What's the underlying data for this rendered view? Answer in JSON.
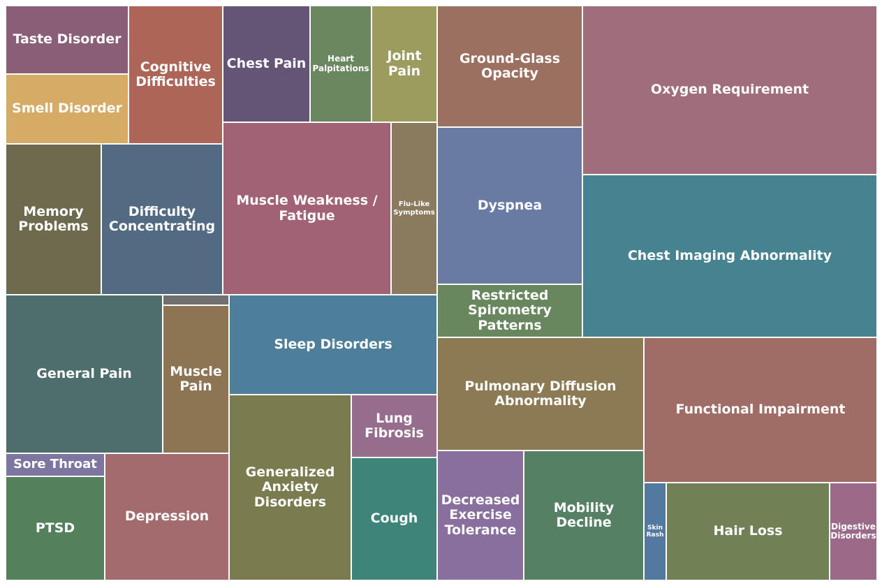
{
  "chart_data": {
    "type": "treemap",
    "tiles": [
      {
        "label": "Taste Disorder",
        "color": "#8a5e76"
      },
      {
        "label": "Smell Disorder",
        "color": "#d6ab66"
      },
      {
        "label": "Cognitive Difficulties",
        "color": "#ad6558"
      },
      {
        "label": "Chest Pain",
        "color": "#645476"
      },
      {
        "label": "Heart Palpitations",
        "color": "#6b8760"
      },
      {
        "label": "Joint Pain",
        "color": "#9c9c5e"
      },
      {
        "label": "Ground-Glass Opacity",
        "color": "#9b7060"
      },
      {
        "label": "Oxygen Requirement",
        "color": "#9f6d7c"
      },
      {
        "label": "Memory Problems",
        "color": "#6e6a4e"
      },
      {
        "label": "Difficulty Concentrating",
        "color": "#536b82"
      },
      {
        "label": "Muscle Weakness / Fatigue",
        "color": "#a06274"
      },
      {
        "label": "Flu-Like Symptoms",
        "color": "#8a7a5e"
      },
      {
        "label": "Dyspnea",
        "color": "#6a7ba3"
      },
      {
        "label": "Chest Imaging Abnormality",
        "color": "#478290"
      },
      {
        "label": "Restricted Spirometry Patterns",
        "color": "#68875f"
      },
      {
        "label": "General Pain",
        "color": "#4d6e6c"
      },
      {
        "label": "",
        "color": "#707070"
      },
      {
        "label": "Muscle Pain",
        "color": "#8d7453"
      },
      {
        "label": "Sleep Disorders",
        "color": "#4e7f9a"
      },
      {
        "label": "Pulmonary Diffusion Abnormality",
        "color": "#8b7a54"
      },
      {
        "label": "Functional Impairment",
        "color": "#a06c66"
      },
      {
        "label": "Lung Fibrosis",
        "color": "#976d8d"
      },
      {
        "label": "Generalized Anxiety Disorders",
        "color": "#7a7b4e"
      },
      {
        "label": "Sore Throat",
        "color": "#7c76a1"
      },
      {
        "label": "PTSD",
        "color": "#54805c"
      },
      {
        "label": "Depression",
        "color": "#a46b6e"
      },
      {
        "label": "Cough",
        "color": "#3f8479"
      },
      {
        "label": "Decreased Exercise Tolerance",
        "color": "#886f9d"
      },
      {
        "label": "Mobility Decline",
        "color": "#558064"
      },
      {
        "label": "Skin Rash",
        "color": "#5279a0"
      },
      {
        "label": "Hair Loss",
        "color": "#728055"
      },
      {
        "label": "Digestive Disorders",
        "color": "#9b6a88"
      }
    ]
  }
}
